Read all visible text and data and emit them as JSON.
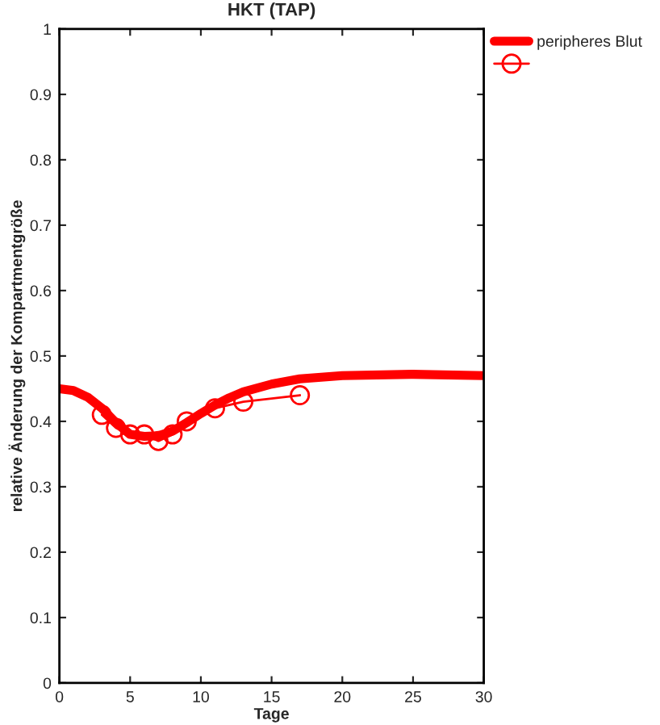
{
  "chart_data": {
    "type": "line",
    "title": "HKT (TAP)",
    "xlabel": "Tage",
    "ylabel": "relative Änderung der Kompartmentgröße",
    "xlim": [
      0,
      30
    ],
    "ylim": [
      0,
      1
    ],
    "xticks": [
      0,
      5,
      10,
      15,
      20,
      25,
      30
    ],
    "yticks": [
      0,
      0.1,
      0.2,
      0.3,
      0.4,
      0.5,
      0.6,
      0.7,
      0.8,
      0.9,
      1
    ],
    "grid": false,
    "legend": "top right",
    "series": [
      {
        "name": "peripheres Blut",
        "color": "#ff0000",
        "marker": "none",
        "x": [
          0,
          1,
          2,
          3,
          4,
          5,
          6,
          7,
          8,
          9,
          10,
          11,
          12,
          13,
          15,
          17,
          20,
          25,
          30
        ],
        "values": [
          0.45,
          0.447,
          0.437,
          0.42,
          0.398,
          0.38,
          0.377,
          0.378,
          0.385,
          0.398,
          0.412,
          0.425,
          0.436,
          0.445,
          0.457,
          0.465,
          0.47,
          0.472,
          0.47
        ]
      },
      {
        "color": "#ff0000",
        "marker": "circle",
        "x": [
          3,
          4,
          5,
          6,
          7,
          8,
          9,
          11,
          13,
          17
        ],
        "values": [
          0.41,
          0.39,
          0.38,
          0.38,
          0.37,
          0.38,
          0.4,
          0.42,
          0.43,
          0.44
        ]
      }
    ]
  }
}
